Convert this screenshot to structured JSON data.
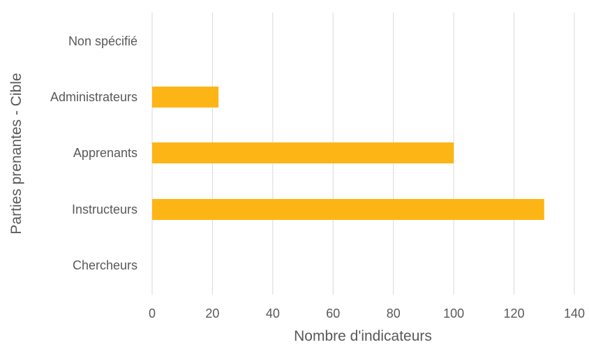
{
  "chart_data": {
    "type": "bar",
    "orientation": "horizontal",
    "categories": [
      "Non spécifié",
      "Administrateurs",
      "Apprenants",
      "Instructeurs",
      "Chercheurs"
    ],
    "values": [
      0,
      22,
      100,
      130,
      0
    ],
    "xlabel": "Nombre d'indicateurs",
    "ylabel": "Parties prenantes - Cible",
    "xlim": [
      0,
      140
    ],
    "xticks": [
      0,
      20,
      40,
      60,
      80,
      100,
      120,
      140
    ],
    "grid": "vertical",
    "legend": "none",
    "bar_color": "#FDB515",
    "grid_color": "#D9D9D9",
    "text_color": "#595959"
  }
}
